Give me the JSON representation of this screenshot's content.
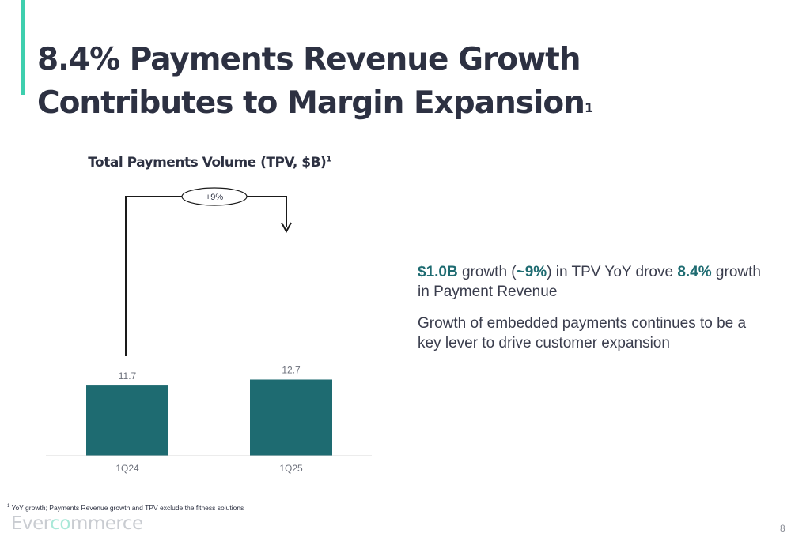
{
  "slide": {
    "title": "8.4% Payments Revenue Growth Contributes to Margin Expansion",
    "title_footnote_mark": "1",
    "page_number": "8"
  },
  "chart_data": {
    "type": "bar",
    "title": "Total Payments Volume (TPV, $B)",
    "title_footnote_mark": "1",
    "categories": [
      "1Q24",
      "1Q25"
    ],
    "values": [
      11.7,
      12.7
    ],
    "value_labels": [
      "11.7",
      "12.7"
    ],
    "growth_annotation": "+9%",
    "bar_color": "#1e6b71",
    "grid": false,
    "legend": "none"
  },
  "commentary": {
    "bullet1": {
      "part1": "$1.0B",
      "part2": " growth (",
      "part3": "~9%",
      "part4": ") in TPV YoY drove ",
      "part5": "8.4%",
      "part6": " growth in Payment Revenue"
    },
    "bullet2": "Growth of embedded payments continues to be a key lever to drive customer expansion"
  },
  "footnote": {
    "mark": "1",
    "text": "YoY growth; Payments Revenue growth and TPV exclude the fitness solutions"
  },
  "logo": {
    "part1": "Ever",
    "part2": "co",
    "part3": "mmerce"
  },
  "colors": {
    "accent": "#3ecfae",
    "title": "#2d3142",
    "highlight": "#1e6b71"
  }
}
